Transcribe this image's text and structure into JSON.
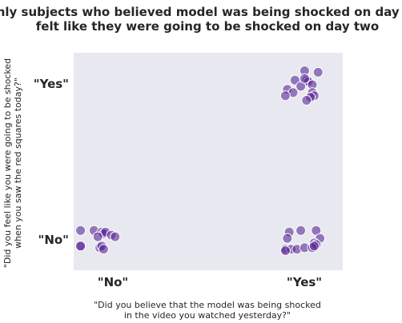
{
  "chart_data": {
    "type": "scatter",
    "title_lines": [
      "Only subjects who believed model was being shocked on day one",
      "felt like they were going to be shocked on day two"
    ],
    "xlabel_lines": [
      "\"Did you believe that the model was being shocked",
      "in the video you watched yesterday?\""
    ],
    "ylabel_lines": [
      "\"Did you feel like you were going to be shocked",
      "when you saw the red squares today?\""
    ],
    "x_categories": [
      "\"No\"",
      "\"Yes\""
    ],
    "y_categories": [
      "\"No\"",
      "\"Yes\""
    ],
    "grid": false,
    "colors": {
      "background": "#e8e8f1",
      "marker": "#5a2a96",
      "marker_edge": "#ffffff"
    },
    "groups": [
      {
        "x": 0,
        "y": 0,
        "points": [
          [
            -0.16,
            0.06
          ],
          [
            -0.09,
            0.06
          ],
          [
            -0.05,
            0.05
          ],
          [
            -0.04,
            0.04
          ],
          [
            -0.03,
            0.05
          ],
          [
            0.0,
            0.03
          ],
          [
            0.02,
            0.02
          ],
          [
            -0.07,
            0.02
          ],
          [
            -0.16,
            -0.04
          ],
          [
            -0.06,
            -0.05
          ],
          [
            -0.05,
            -0.04
          ],
          [
            -0.04,
            -0.06
          ],
          [
            -0.16,
            -0.04
          ]
        ]
      },
      {
        "x": 0,
        "y": 1,
        "points": []
      },
      {
        "x": 1,
        "y": 0,
        "points": [
          [
            -0.07,
            0.05
          ],
          [
            -0.01,
            0.06
          ],
          [
            0.07,
            0.06
          ],
          [
            0.09,
            0.01
          ],
          [
            0.06,
            -0.02
          ],
          [
            -0.08,
            0.01
          ],
          [
            0.07,
            -0.03
          ],
          [
            -0.09,
            -0.06
          ],
          [
            -0.06,
            -0.06
          ],
          [
            -0.03,
            -0.06
          ],
          [
            0.01,
            -0.05
          ],
          [
            0.05,
            -0.05
          ],
          [
            0.06,
            -0.04
          ],
          [
            -0.09,
            -0.07
          ]
        ]
      },
      {
        "x": 1,
        "y": 1,
        "points": [
          [
            0.01,
            0.09
          ],
          [
            0.08,
            0.08
          ],
          [
            -0.04,
            0.03
          ],
          [
            0.02,
            0.03
          ],
          [
            0.03,
            0.02
          ],
          [
            0.05,
            0.0
          ],
          [
            -0.01,
            -0.01
          ],
          [
            -0.08,
            -0.03
          ],
          [
            -0.05,
            -0.05
          ],
          [
            0.05,
            -0.05
          ],
          [
            0.06,
            -0.07
          ],
          [
            0.04,
            -0.08
          ],
          [
            -0.09,
            -0.07
          ],
          [
            0.02,
            -0.1
          ],
          [
            0.01,
            0.04
          ]
        ]
      }
    ]
  }
}
